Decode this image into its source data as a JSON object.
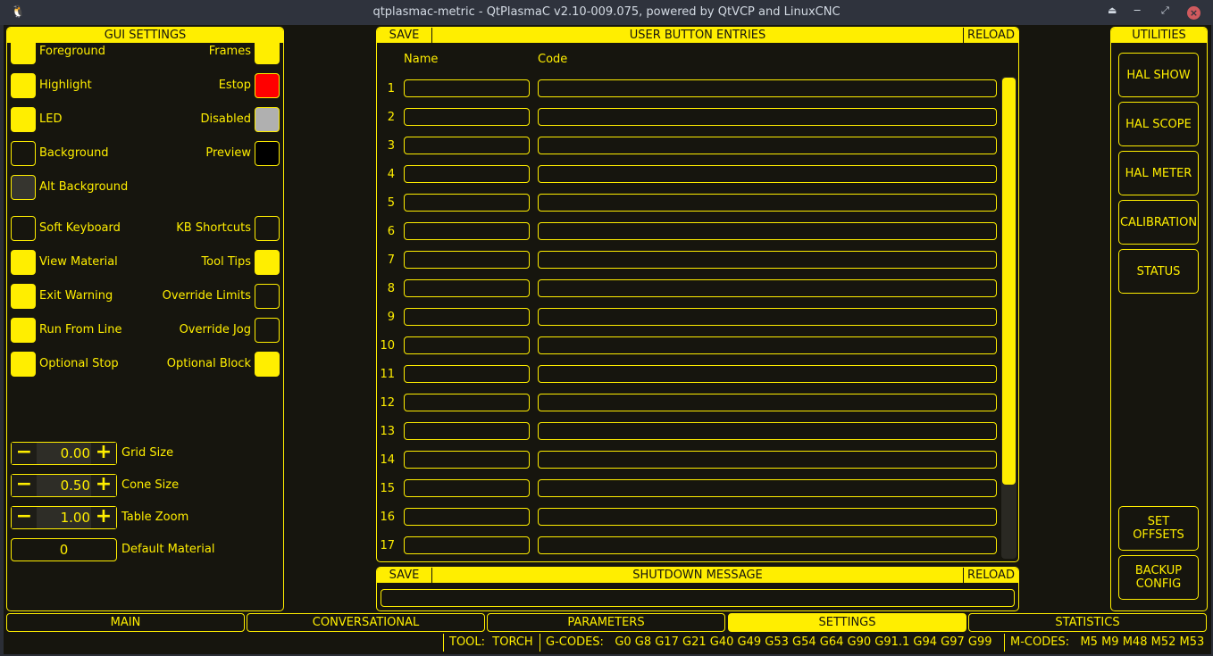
{
  "window": {
    "title": "qtplasmac-metric - QtPlasmaC v2.10-009.075, powered by QtVCP and LinuxCNC",
    "controls": [
      "keep-above",
      "minimize",
      "maximize",
      "close"
    ]
  },
  "colors": {
    "accent": "#ffee00",
    "background": "#16150e",
    "estop": "#ff0000",
    "disabled": "#b0b0b0",
    "preview": "#000000",
    "alt_background": "#36352f"
  },
  "gui_settings": {
    "title": "GUI SETTINGS",
    "colors_left": [
      {
        "label": "Foreground",
        "color": "#ffee00"
      },
      {
        "label": "Highlight",
        "color": "#ffee00"
      },
      {
        "label": "LED",
        "color": "#ffee00"
      },
      {
        "label": "Background",
        "color": "#16150e"
      },
      {
        "label": "Alt Background",
        "color": "#36352f"
      }
    ],
    "colors_right": [
      {
        "label": "Frames",
        "color": "#ffee00"
      },
      {
        "label": "Estop",
        "color": "#ff0000"
      },
      {
        "label": "Disabled",
        "color": "#b0b0b0"
      },
      {
        "label": "Preview",
        "color": "#000000"
      }
    ],
    "checks_left": [
      {
        "label": "Soft Keyboard",
        "checked": false
      },
      {
        "label": "View Material",
        "checked": true
      },
      {
        "label": "Exit Warning",
        "checked": true
      },
      {
        "label": "Run From Line",
        "checked": true
      },
      {
        "label": "Optional Stop",
        "checked": true
      }
    ],
    "checks_right": [
      {
        "label": "KB Shortcuts",
        "checked": false
      },
      {
        "label": "Tool Tips",
        "checked": true
      },
      {
        "label": "Override Limits",
        "checked": false
      },
      {
        "label": "Override Jog",
        "checked": false
      },
      {
        "label": "Optional Block",
        "checked": true
      }
    ],
    "spinners": [
      {
        "label": "Grid Size",
        "value": "0.00"
      },
      {
        "label": "Cone Size",
        "value": "0.50"
      },
      {
        "label": "Table Zoom",
        "value": "1.00"
      }
    ],
    "default_material": {
      "label": "Default Material",
      "value": "0"
    }
  },
  "user_buttons": {
    "save": "SAVE",
    "title": "USER BUTTON ENTRIES",
    "reload": "RELOAD",
    "col_name": "Name",
    "col_code": "Code",
    "rows": [
      "1",
      "2",
      "3",
      "4",
      "5",
      "6",
      "7",
      "8",
      "9",
      "10",
      "11",
      "12",
      "13",
      "14",
      "15",
      "16",
      "17"
    ]
  },
  "shutdown": {
    "save": "SAVE",
    "title": "SHUTDOWN MESSAGE",
    "reload": "RELOAD",
    "value": ""
  },
  "utilities": {
    "title": "UTILITIES",
    "buttons": [
      "HAL SHOW",
      "HAL SCOPE",
      "HAL METER",
      "CALIBRATION",
      "STATUS"
    ],
    "bottom_buttons": [
      "SET\nOFFSETS",
      "BACKUP\nCONFIG"
    ]
  },
  "tabs": [
    {
      "label": "MAIN",
      "active": false
    },
    {
      "label": "CONVERSATIONAL",
      "active": false
    },
    {
      "label": "PARAMETERS",
      "active": false
    },
    {
      "label": "SETTINGS",
      "active": true
    },
    {
      "label": "STATISTICS",
      "active": false
    }
  ],
  "status": {
    "tool": "TOOL:  TORCH",
    "gcodes": "G-CODES:   G0 G8 G17 G21 G40 G49 G53 G54 G64 G90 G91.1 G94 G97 G99",
    "mcodes": "M-CODES:   M5 M9 M48 M52 M53"
  }
}
